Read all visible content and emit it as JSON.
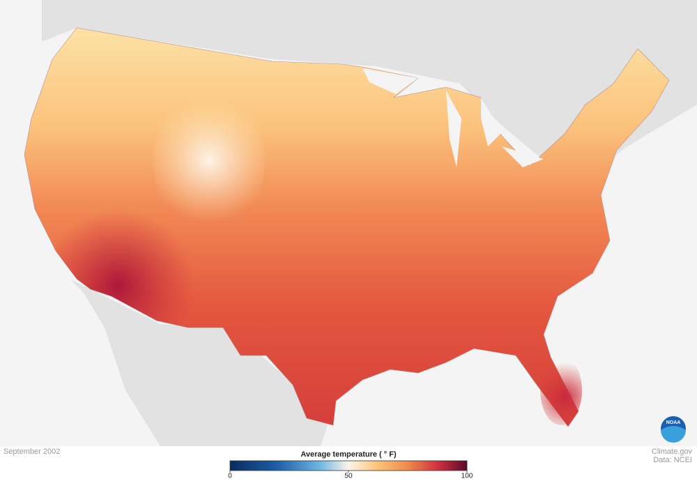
{
  "map": {
    "date": "September 2002",
    "credit": "Climate.gov",
    "source": "Data: NCEI",
    "logo": "NOAA"
  },
  "legend": {
    "title": "Average temperature ( ° F)",
    "range": [
      0,
      100
    ],
    "ticks": [
      0,
      50,
      100
    ]
  }
}
